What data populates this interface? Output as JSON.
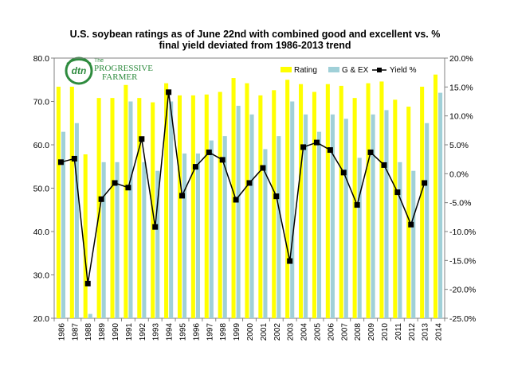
{
  "chart_data": {
    "type": "bar",
    "title_line1": "U.S. soybean ratings as of June 22nd with combined good and excellent vs. %",
    "title_line2": "final yield deviated from 1986-2013 trend",
    "categories": [
      "1986",
      "1987",
      "1988",
      "1989",
      "1990",
      "1991",
      "1992",
      "1993",
      "1994",
      "1995",
      "1996",
      "1997",
      "1998",
      "1999",
      "2000",
      "2001",
      "2002",
      "2003",
      "2004",
      "2005",
      "2006",
      "2007",
      "2008",
      "2009",
      "2010",
      "2011",
      "2012",
      "2013",
      "2014"
    ],
    "series": [
      {
        "name": "Rating",
        "type": "bar",
        "axis": "left",
        "color": "#ffff00",
        "values": [
          73.4,
          73.4,
          57.8,
          70.8,
          70.8,
          73.8,
          70.8,
          69.8,
          74.2,
          71.4,
          71.4,
          71.6,
          72.2,
          75.4,
          74.2,
          71.4,
          72.6,
          75.0,
          74.0,
          72.2,
          74.0,
          73.6,
          70.8,
          74.2,
          74.6,
          70.4,
          68.8,
          73.4,
          76.2
        ]
      },
      {
        "name": "G & EX",
        "type": "bar",
        "axis": "left",
        "color": "#a0d0d8",
        "values": [
          63,
          65,
          21,
          56,
          56,
          70,
          56,
          54,
          70,
          58,
          58,
          61,
          62,
          69,
          67,
          59,
          62,
          70,
          67,
          63,
          67,
          66,
          57,
          67,
          68,
          56,
          54,
          65,
          72
        ]
      },
      {
        "name": "Yield %",
        "type": "line",
        "axis": "right",
        "color": "#000000",
        "values": [
          2.0,
          2.6,
          -19.0,
          -4.4,
          -1.6,
          -2.4,
          6.0,
          -9.2,
          14.1,
          -3.8,
          1.2,
          3.7,
          2.4,
          -4.5,
          -1.6,
          1.0,
          -3.9,
          -15.1,
          4.6,
          5.4,
          4.1,
          0.2,
          -5.4,
          3.7,
          1.5,
          -3.2,
          -8.8,
          -1.6,
          null
        ]
      }
    ],
    "y_left": {
      "min": 20,
      "max": 80,
      "ticks": [
        "20.0",
        "30.0",
        "40.0",
        "50.0",
        "60.0",
        "70.0",
        "80.0"
      ]
    },
    "y_right": {
      "min": -25,
      "max": 20,
      "ticks": [
        "-25.0%",
        "-20.0%",
        "-15.0%",
        "-10.0%",
        "-5.0%",
        "0.0%",
        "5.0%",
        "10.0%",
        "15.0%",
        "20.0%"
      ]
    },
    "grid": false,
    "legend_position": "top-right"
  },
  "logo": {
    "brand_short": "dtn",
    "brand_the": "The",
    "brand_line1": "PROGRESSIVE",
    "brand_line2": "FARMER"
  },
  "colors": {
    "rating": "#ffff00",
    "gex": "#a0d0d8",
    "yield": "#000000",
    "logo_green": "#2e8b3e"
  }
}
